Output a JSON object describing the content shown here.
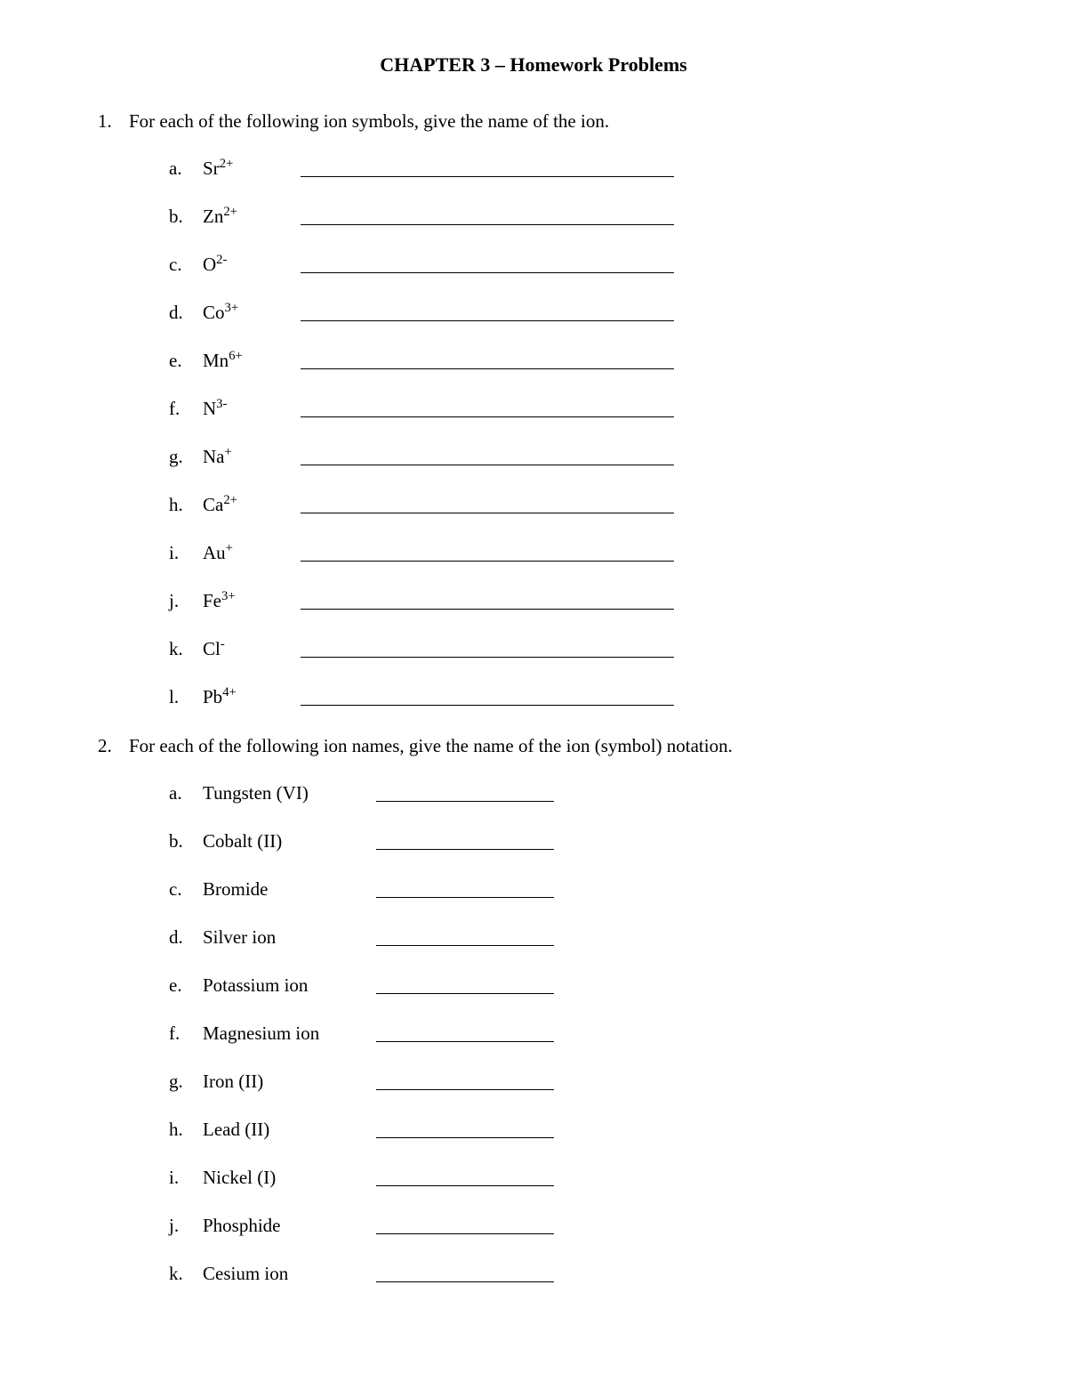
{
  "title": "CHAPTER 3 – Homework Problems",
  "colors": {
    "text": "#000000",
    "background": "#ffffff",
    "line": "#000000"
  },
  "typography": {
    "font_family": "Times New Roman",
    "body_fontsize": 21,
    "title_fontsize": 22,
    "title_weight": "bold"
  },
  "questions": [
    {
      "number": "1.",
      "prompt": "For each of the following ion symbols, give the name of the ion.",
      "label_width_class": "q1",
      "line_width_class": "q1",
      "items": [
        {
          "letter": "a.",
          "base": "Sr",
          "sup": "2+"
        },
        {
          "letter": "b.",
          "base": "Zn",
          "sup": "2+"
        },
        {
          "letter": "c.",
          "base": "O",
          "sup": "2-"
        },
        {
          "letter": "d.",
          "base": "Co",
          "sup": "3+"
        },
        {
          "letter": "e.",
          "base": "Mn",
          "sup": "6+"
        },
        {
          "letter": "f.",
          "base": "N",
          "sup": "3-"
        },
        {
          "letter": "g.",
          "base": "Na",
          "sup": "+"
        },
        {
          "letter": "h.",
          "base": "Ca",
          "sup": "2+"
        },
        {
          "letter": "i.",
          "base": "Au",
          "sup": "+"
        },
        {
          "letter": "j.",
          "base": "Fe",
          "sup": "3+"
        },
        {
          "letter": "k.",
          "base": "Cl",
          "sup": "-"
        },
        {
          "letter": "l.",
          "base": "Pb",
          "sup": "4+"
        }
      ]
    },
    {
      "number": "2.",
      "prompt": "For each of the following ion names, give the name of the ion (symbol) notation.",
      "label_width_class": "q2",
      "line_width_class": "q2",
      "items": [
        {
          "letter": "a.",
          "text": "Tungsten (VI)"
        },
        {
          "letter": "b.",
          "text": "Cobalt (II)"
        },
        {
          "letter": "c.",
          "text": "Bromide"
        },
        {
          "letter": "d.",
          "text": "Silver ion"
        },
        {
          "letter": "e.",
          "text": "Potassium ion"
        },
        {
          "letter": "f.",
          "text": "Magnesium ion"
        },
        {
          "letter": "g.",
          "text": "Iron (II)"
        },
        {
          "letter": "h.",
          "text": "Lead (II)"
        },
        {
          "letter": "i.",
          "text": "Nickel (I)"
        },
        {
          "letter": "j.",
          "text": "Phosphide"
        },
        {
          "letter": "k.",
          "text": "Cesium ion"
        }
      ]
    }
  ]
}
